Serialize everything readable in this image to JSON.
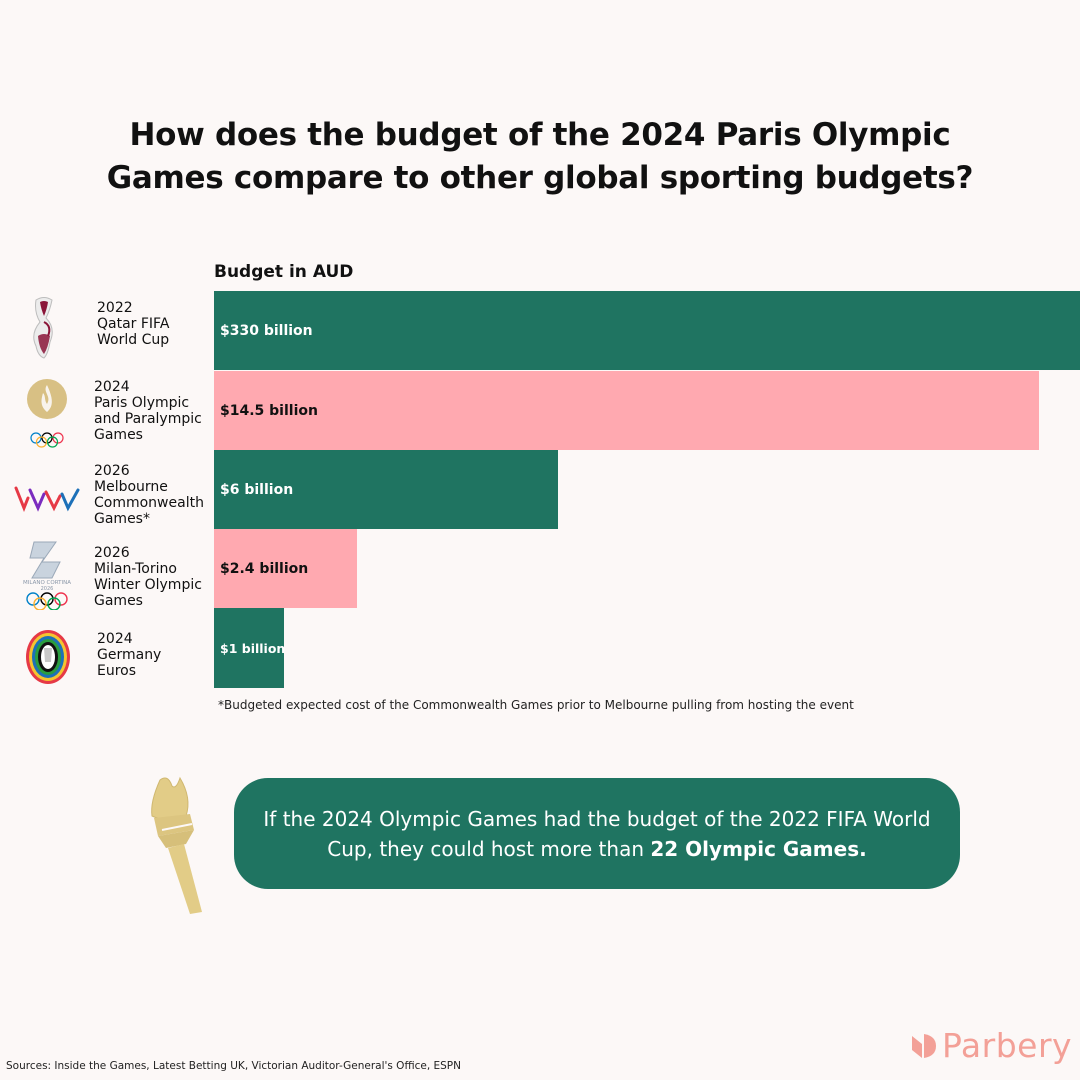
{
  "title": {
    "line1": "How does the budget of the 2024 Paris Olympic",
    "line2": "Games compare to other global sporting budgets?"
  },
  "chart_data": {
    "type": "bar",
    "orientation": "horizontal",
    "title": "How does the budget of the 2024 Paris Olympic Games compare to other global sporting budgets?",
    "xlabel": "Budget in AUD",
    "ylabel": "",
    "unit": "AUD billion",
    "scale": "not to scale (illustrative bar lengths)",
    "categories": [
      "2022 Qatar FIFA World Cup",
      "2024 Paris Olympic and Paralympic Games",
      "2026 Melbourne Commonwealth Games*",
      "2026 Milan-Torino Winter Olympic Games",
      "2024 Germany Euros"
    ],
    "values": [
      330,
      14.5,
      6,
      2.4,
      1
    ],
    "bars": [
      {
        "year": "2022",
        "name_lines": [
          "Qatar FIFA",
          "World Cup"
        ],
        "value": 330,
        "value_label": "$330 billion",
        "display_length": 1.0,
        "color": "#1f7461",
        "label_color": "#ffffff"
      },
      {
        "year": "2024",
        "name_lines": [
          "Paris Olympic",
          "and Paralympic",
          "Games"
        ],
        "value": 14.5,
        "value_label": "$14.5 billion",
        "display_length": 0.953,
        "color": "#ffa9b0",
        "label_color": "#111111"
      },
      {
        "year": "2026",
        "name_lines": [
          "Melbourne",
          "Commonwealth",
          "Games*"
        ],
        "value": 6,
        "value_label": "$6 billion",
        "display_length": 0.397,
        "color": "#1f7461",
        "label_color": "#ffffff"
      },
      {
        "year": "2026",
        "name_lines": [
          "Milan-Torino",
          "Winter Olympic",
          "Games"
        ],
        "value": 2.4,
        "value_label": "$2.4 billion",
        "display_length": 0.165,
        "color": "#ffa9b0",
        "label_color": "#111111"
      },
      {
        "year": "2024",
        "name_lines": [
          "Germany",
          "Euros"
        ],
        "value": 1,
        "value_label": "$1 billion",
        "display_length": 0.081,
        "color": "#1f7461",
        "label_color": "#ffffff"
      }
    ],
    "footnote": "*Budgeted expected cost of the Commonwealth Games prior to Melbourne pulling from hosting the event"
  },
  "callout": {
    "text_regular": "If the 2024 Olympic Games had the budget of the 2022 FIFA World Cup, they could host more than ",
    "text_bold": "22 Olympic Games."
  },
  "logos": {
    "milan_cortina_text": "MILANO CORTINA",
    "milan_cortina_year": "2026"
  },
  "sources": "Sources: Inside the Games, Latest Betting UK, Victorian Auditor-General's Office, ESPN",
  "brand": {
    "name": "Parbery",
    "color": "#f3a097"
  },
  "colors": {
    "green": "#1f7461",
    "pink": "#ffa9b0",
    "background": "#fcf8f7"
  }
}
